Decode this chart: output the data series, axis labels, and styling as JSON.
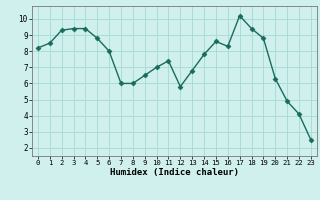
{
  "x": [
    0,
    1,
    2,
    3,
    4,
    5,
    6,
    7,
    8,
    9,
    10,
    11,
    12,
    13,
    14,
    15,
    16,
    17,
    18,
    19,
    20,
    21,
    22,
    23
  ],
  "y": [
    8.2,
    8.5,
    9.3,
    9.4,
    9.4,
    8.8,
    8.0,
    6.0,
    6.0,
    6.5,
    7.0,
    7.4,
    5.8,
    6.8,
    7.8,
    8.6,
    8.3,
    10.2,
    9.4,
    8.8,
    6.3,
    4.9,
    4.1,
    2.5
  ],
  "line_color": "#1a6b5e",
  "marker": "D",
  "marker_size": 2.5,
  "bg_color": "#cff0ec",
  "grid_color": "#aaddd6",
  "xlabel": "Humidex (Indice chaleur)",
  "ylim": [
    1.5,
    10.8
  ],
  "xlim": [
    -0.5,
    23.5
  ],
  "yticks": [
    2,
    3,
    4,
    5,
    6,
    7,
    8,
    9,
    10
  ],
  "xticks": [
    0,
    1,
    2,
    3,
    4,
    5,
    6,
    7,
    8,
    9,
    10,
    11,
    12,
    13,
    14,
    15,
    16,
    17,
    18,
    19,
    20,
    21,
    22,
    23
  ]
}
